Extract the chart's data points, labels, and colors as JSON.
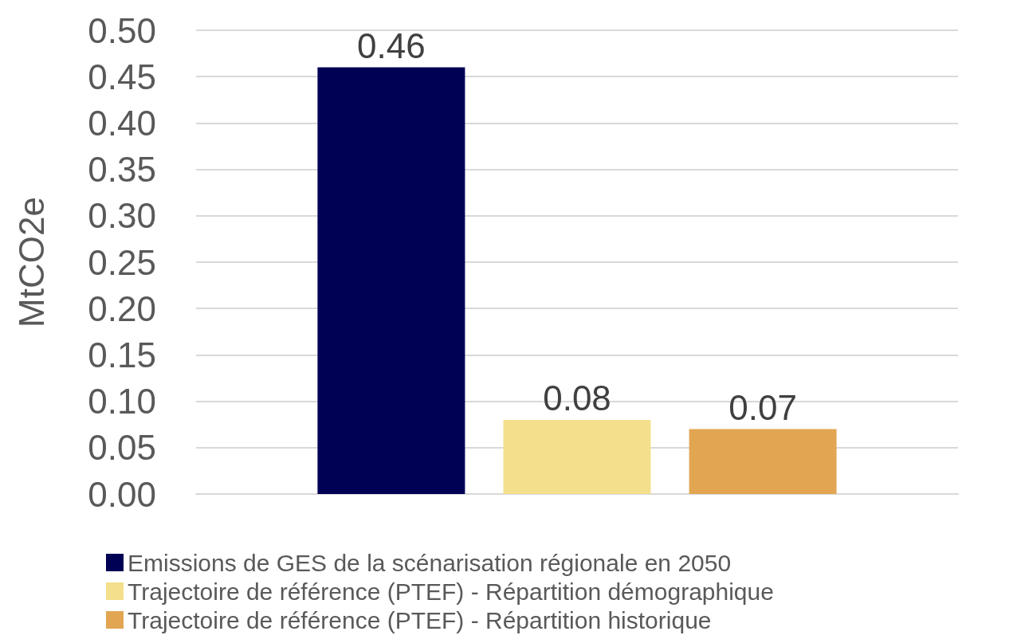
{
  "chart_data": {
    "type": "bar",
    "ylabel": "MtCO2e",
    "categories": [
      null
    ],
    "series": [
      {
        "name": "Emissions de GES de la scénarisation régionale en 2050",
        "color": "#000055",
        "values": [
          0.46
        ],
        "value_labels": [
          "0.46"
        ]
      },
      {
        "name": "Trajectoire de référence (PTEF) - Répartition démographique",
        "color": "#f3df8c",
        "values": [
          0.08
        ],
        "value_labels": [
          "0.08"
        ]
      },
      {
        "name": "Trajectoire de référence (PTEF) - Répartition historique",
        "color": "#e2a552",
        "values": [
          0.07
        ],
        "value_labels": [
          "0.07"
        ]
      }
    ],
    "ylim": [
      0,
      0.5
    ],
    "yticks": [
      {
        "value": 0,
        "label": "0.00"
      },
      {
        "value": 0.05,
        "label": "0.05"
      },
      {
        "value": 0.1,
        "label": "0.10"
      },
      {
        "value": 0.15,
        "label": "0.15"
      },
      {
        "value": 0.2,
        "label": "0.20"
      },
      {
        "value": 0.25,
        "label": "0.25"
      },
      {
        "value": 0.3,
        "label": "0.30"
      },
      {
        "value": 0.35,
        "label": "0.35"
      },
      {
        "value": 0.4,
        "label": "0.40"
      },
      {
        "value": 0.45,
        "label": "0.45"
      },
      {
        "value": 0.5,
        "label": "0.50"
      }
    ],
    "grid": "y",
    "legend": "bottom"
  }
}
